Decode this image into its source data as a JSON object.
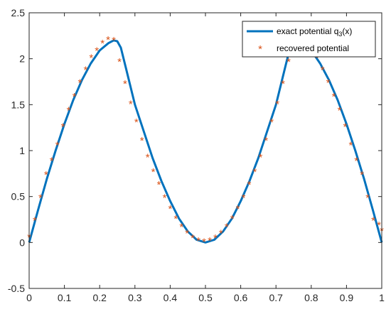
{
  "chart_data": {
    "type": "line",
    "title": "",
    "xlabel": "",
    "ylabel": "",
    "xlim": [
      0,
      1
    ],
    "ylim": [
      -0.5,
      2.5
    ],
    "grid": false,
    "legend_position": "top-right",
    "xticks": [
      "0",
      "0.1",
      "0.2",
      "0.3",
      "0.4",
      "0.5",
      "0.6",
      "0.7",
      "0.8",
      "0.9",
      "1"
    ],
    "yticks": [
      "-0.5",
      "0",
      "0.5",
      "1",
      "1.5",
      "2",
      "2.5"
    ],
    "legend": {
      "exact_label": "exact potential q",
      "exact_label_sub": "3",
      "exact_label_suffix": "(x)",
      "recovered_label": "recovered potential"
    },
    "colors": {
      "exact": "#0072BD",
      "recovered": "#D95319"
    },
    "series": [
      {
        "name": "exact potential q3(x)",
        "style": "line",
        "x": [
          0,
          0.025,
          0.05,
          0.075,
          0.1,
          0.125,
          0.15,
          0.175,
          0.2,
          0.225,
          0.24,
          0.25,
          0.26,
          0.275,
          0.3,
          0.325,
          0.35,
          0.375,
          0.4,
          0.425,
          0.45,
          0.475,
          0.5,
          0.525,
          0.55,
          0.575,
          0.6,
          0.625,
          0.65,
          0.675,
          0.7,
          0.725,
          0.74,
          0.75,
          0.76,
          0.775,
          0.8,
          0.825,
          0.85,
          0.875,
          0.9,
          0.925,
          0.95,
          0.975,
          1
        ],
        "y": [
          0,
          0.35,
          0.69,
          1.0,
          1.29,
          1.55,
          1.77,
          1.95,
          2.09,
          2.17,
          2.2,
          2.19,
          2.12,
          1.89,
          1.5,
          1.21,
          0.92,
          0.67,
          0.45,
          0.26,
          0.12,
          0.03,
          0,
          0.03,
          0.12,
          0.26,
          0.45,
          0.67,
          0.92,
          1.21,
          1.5,
          1.89,
          2.12,
          2.19,
          2.2,
          2.17,
          2.09,
          1.95,
          1.77,
          1.55,
          1.29,
          1.0,
          0.69,
          0.35,
          0
        ]
      },
      {
        "name": "recovered potential",
        "style": "marker",
        "x": [
          0,
          0.016,
          0.032,
          0.048,
          0.064,
          0.08,
          0.096,
          0.112,
          0.128,
          0.144,
          0.16,
          0.176,
          0.192,
          0.208,
          0.224,
          0.24,
          0.256,
          0.272,
          0.288,
          0.304,
          0.32,
          0.336,
          0.352,
          0.368,
          0.384,
          0.4,
          0.416,
          0.432,
          0.448,
          0.464,
          0.48,
          0.496,
          0.512,
          0.528,
          0.544,
          0.56,
          0.576,
          0.592,
          0.608,
          0.624,
          0.64,
          0.656,
          0.672,
          0.688,
          0.704,
          0.72,
          0.736,
          0.752,
          0.768,
          0.784,
          0.8,
          0.816,
          0.832,
          0.848,
          0.864,
          0.88,
          0.896,
          0.912,
          0.928,
          0.944,
          0.96,
          0.976,
          0.992,
          1
        ],
        "y": [
          0.05,
          0.23,
          0.48,
          0.73,
          0.88,
          1.05,
          1.25,
          1.43,
          1.58,
          1.73,
          1.87,
          2.0,
          2.08,
          2.16,
          2.2,
          2.19,
          1.96,
          1.72,
          1.5,
          1.3,
          1.1,
          0.92,
          0.76,
          0.62,
          0.48,
          0.36,
          0.25,
          0.16,
          0.09,
          0.04,
          0.01,
          0.0,
          0.01,
          0.04,
          0.09,
          0.16,
          0.25,
          0.36,
          0.48,
          0.62,
          0.76,
          0.92,
          1.1,
          1.3,
          1.5,
          1.72,
          1.96,
          2.19,
          2.2,
          2.16,
          2.08,
          2.0,
          1.87,
          1.73,
          1.58,
          1.43,
          1.25,
          1.05,
          0.88,
          0.73,
          0.48,
          0.23,
          0.18,
          0.12
        ]
      }
    ]
  }
}
